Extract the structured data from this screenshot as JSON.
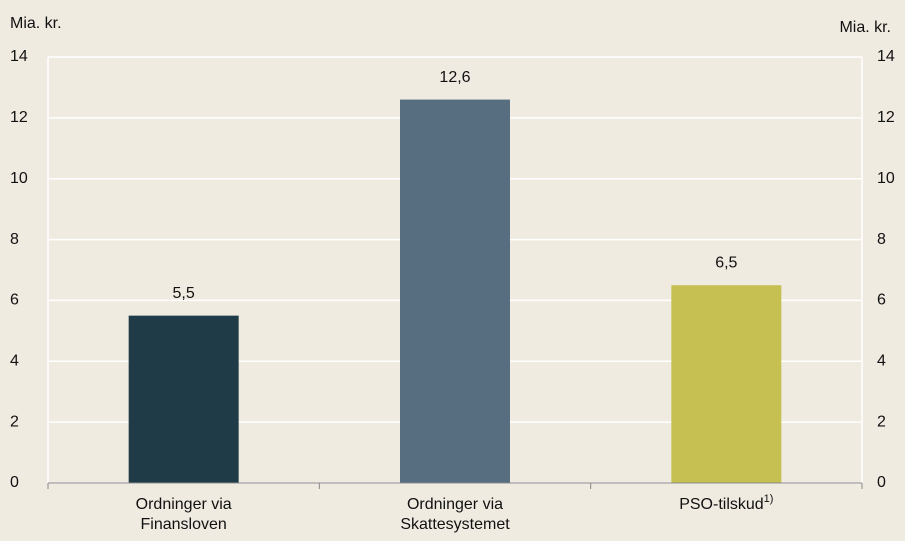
{
  "chart_data": {
    "type": "bar",
    "y_label": "Mia. kr.",
    "y2_label": "Mia. kr.",
    "categories": [
      "Ordninger via\nFinansloven",
      "Ordninger via\nSkattesystemet",
      "PSO-tilskud"
    ],
    "category_superscripts": [
      null,
      null,
      "1)"
    ],
    "values": [
      5.5,
      12.6,
      6.5
    ],
    "value_labels": [
      "5,5",
      "12,6",
      "6,5"
    ],
    "colors": [
      "#1e3b47",
      "#566e7f",
      "#c5c051"
    ],
    "ylim": [
      0,
      14
    ],
    "yticks": [
      0,
      2,
      4,
      6,
      8,
      10,
      12,
      14
    ],
    "y2lim": [
      0,
      14
    ],
    "y2ticks": [
      0,
      2,
      4,
      6,
      8,
      10,
      12,
      14
    ],
    "grid": true
  }
}
